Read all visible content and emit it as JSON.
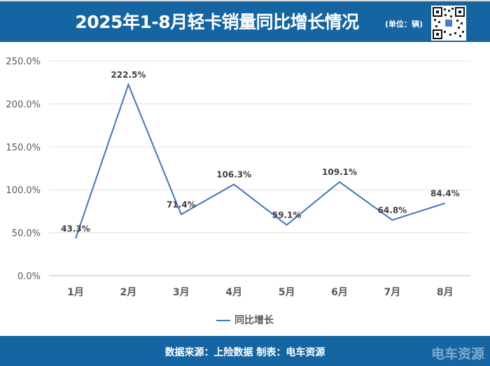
{
  "header": {
    "title": "2025年1-8月轻卡销量同比增长情况",
    "unit": "(单位：辆)"
  },
  "footer": {
    "source": "数据来源：上险数据  制表：电车资源",
    "watermark": "电车资源"
  },
  "colors": {
    "header_bg": "#1565a3",
    "series": "#4472c4"
  },
  "chart_data": {
    "type": "line",
    "title": "2025年1-8月轻卡销量同比增长情况",
    "categories": [
      "1月",
      "2月",
      "3月",
      "4月",
      "5月",
      "6月",
      "7月",
      "8月"
    ],
    "series": [
      {
        "name": "同比增长",
        "values": [
          43.3,
          222.5,
          71.4,
          106.3,
          59.1,
          109.1,
          64.8,
          84.4
        ],
        "labels": [
          "43.3%",
          "222.5%",
          "71.4%",
          "106.3%",
          "59.1%",
          "109.1%",
          "64.8%",
          "84.4%"
        ]
      }
    ],
    "ylim": [
      0,
      250
    ],
    "yticks": [
      "0.0%",
      "50.0%",
      "100.0%",
      "150.0%",
      "200.0%",
      "250.0%"
    ],
    "grid": true,
    "legend": "bottom"
  }
}
